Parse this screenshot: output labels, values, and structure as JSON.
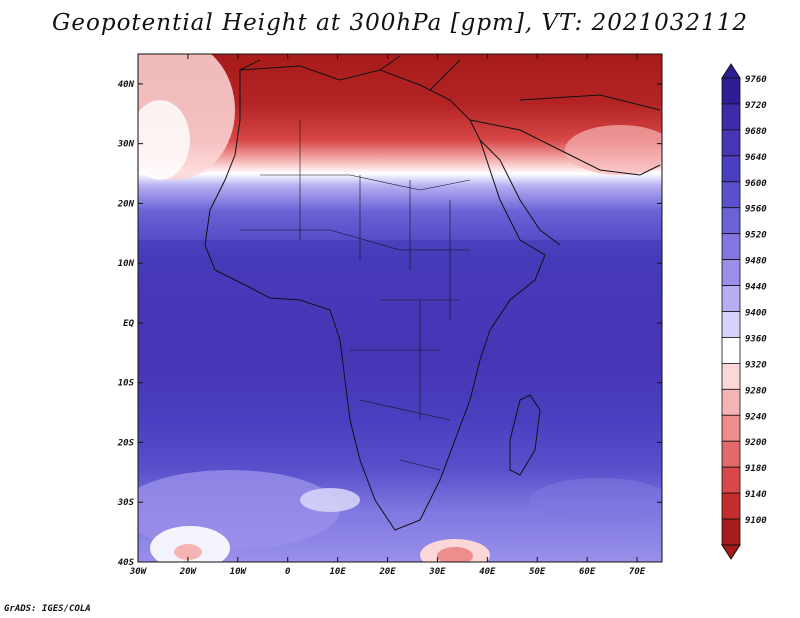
{
  "title": "Geopotential Height at 300hPa [gpm], VT: 2021032112",
  "footer": "GrADS: IGES/COLA",
  "lat_labels": [
    "40N",
    "30N",
    "20N",
    "10N",
    "EQ",
    "10S",
    "20S",
    "30S",
    "40S"
  ],
  "lon_labels": [
    "30W",
    "20W",
    "10W",
    "0",
    "10E",
    "20E",
    "30E",
    "40E",
    "50E",
    "60E",
    "70E"
  ],
  "colorbar": {
    "levels": [
      9760,
      9720,
      9680,
      9640,
      9600,
      9560,
      9520,
      9480,
      9440,
      9400,
      9360,
      9320,
      9280,
      9240,
      9200,
      9180,
      9140,
      9100
    ],
    "colors": [
      "#2d1e96",
      "#3a2caa",
      "#4636b5",
      "#4a3fc0",
      "#5a50cc",
      "#6b62d6",
      "#8077e0",
      "#9890ea",
      "#b4aef2",
      "#d6d3fa",
      "#ffffff",
      "#fbd7d7",
      "#f6b3b3",
      "#ee8d8d",
      "#e46a6a",
      "#d84848",
      "#c42d2d",
      "#a81b1b"
    ]
  },
  "chart_data": {
    "type": "heatmap",
    "variable": "Geopotential Height at 300hPa",
    "units": "gpm",
    "valid_time": "2021032112",
    "domain": {
      "lon_range": [
        -30,
        75
      ],
      "lat_range": [
        -40,
        45
      ]
    },
    "fields": [
      {
        "region": "North Africa / Mediterranean (30N-45N)",
        "approx_value": 9100
      },
      {
        "region": "Sahara transition (20N-25N)",
        "approx_value": 9450
      },
      {
        "region": "Tropics (15N-15S)",
        "approx_value": 9680
      },
      {
        "region": "Southern subtropics (20S-30S)",
        "approx_value": 9560
      },
      {
        "region": "Southern Atlantic high (35S, 20W)",
        "approx_value": 9360
      },
      {
        "region": "South of Africa low (38S, 32E)",
        "approx_value": 9300
      }
    ]
  }
}
